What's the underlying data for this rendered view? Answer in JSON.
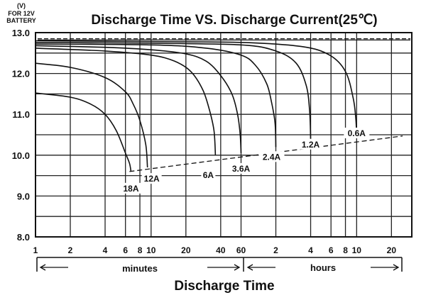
{
  "chart_data": {
    "type": "line",
    "title": "Discharge Time VS. Discharge Current(25℃)",
    "unit_label": "(V)",
    "battery_label_line1": "FOR 12V",
    "battery_label_line2": "BATTERY",
    "xlabel": "Discharge Time",
    "x_unit_minutes": "minutes",
    "x_unit_hours": "hours",
    "x_scale": "log",
    "xlim_minutes": [
      1,
      1800
    ],
    "ylim": [
      8.0,
      13.0
    ],
    "grid": true,
    "y_ticks": [
      "13.0",
      "12.0",
      "11.0",
      "10.0",
      "9.0",
      "8.0"
    ],
    "x_ticks": [
      {
        "label": "1",
        "minutes": 1
      },
      {
        "label": "2",
        "minutes": 2
      },
      {
        "label": "4",
        "minutes": 4
      },
      {
        "label": "6",
        "minutes": 6
      },
      {
        "label": "8",
        "minutes": 8
      },
      {
        "label": "10",
        "minutes": 10
      },
      {
        "label": "20",
        "minutes": 20
      },
      {
        "label": "40",
        "minutes": 40
      },
      {
        "label": "60",
        "minutes": 60
      },
      {
        "label": "2",
        "minutes": 120
      },
      {
        "label": "4",
        "minutes": 240
      },
      {
        "label": "6",
        "minutes": 360
      },
      {
        "label": "8",
        "minutes": 480
      },
      {
        "label": "10",
        "minutes": 600
      },
      {
        "label": "20",
        "minutes": 1200
      }
    ],
    "series": [
      {
        "name": "18A",
        "x": [
          1,
          2,
          3,
          4,
          5,
          6,
          6.5,
          6.7
        ],
        "y": [
          11.52,
          11.42,
          11.25,
          11.0,
          10.6,
          10.05,
          9.8,
          9.6
        ]
      },
      {
        "name": "12A",
        "x": [
          1,
          2,
          4,
          6,
          7,
          8,
          9,
          9.3
        ],
        "y": [
          12.25,
          12.15,
          11.9,
          11.55,
          11.25,
          10.85,
          10.25,
          9.7
        ]
      },
      {
        "name": "6A",
        "x": [
          1,
          4,
          10,
          16,
          22,
          28,
          32,
          35,
          36
        ],
        "y": [
          12.62,
          12.55,
          12.45,
          12.3,
          12.05,
          11.6,
          11.1,
          10.6,
          10.0
        ]
      },
      {
        "name": "3.6A",
        "x": [
          1,
          4,
          10,
          20,
          30,
          40,
          50,
          56,
          59,
          60
        ],
        "y": [
          12.68,
          12.64,
          12.58,
          12.48,
          12.3,
          11.95,
          11.5,
          11.0,
          10.5,
          10.05
        ]
      },
      {
        "name": "2.4A",
        "x": [
          1,
          10,
          30,
          60,
          80,
          100,
          110,
          118,
          120
        ],
        "y": [
          12.72,
          12.7,
          12.62,
          12.45,
          12.2,
          11.75,
          11.3,
          10.8,
          10.2
        ]
      },
      {
        "name": "1.2A",
        "x": [
          1,
          10,
          60,
          120,
          180,
          220,
          235,
          240
        ],
        "y": [
          12.76,
          12.74,
          12.7,
          12.55,
          12.25,
          11.7,
          11.1,
          10.4
        ]
      },
      {
        "name": "0.6A",
        "x": [
          1,
          10,
          60,
          200,
          350,
          480,
          560,
          590,
          600
        ],
        "y": [
          12.8,
          12.78,
          12.76,
          12.66,
          12.45,
          12.05,
          11.4,
          10.9,
          10.5
        ]
      }
    ],
    "cutoff_line": {
      "x": [
        6.5,
        1500
      ],
      "y": [
        9.6,
        10.47
      ],
      "style": "dashed"
    },
    "reference_lines": [
      {
        "y": 12.85,
        "style": "dashed"
      },
      {
        "y": 12.82,
        "style": "solid"
      }
    ]
  }
}
